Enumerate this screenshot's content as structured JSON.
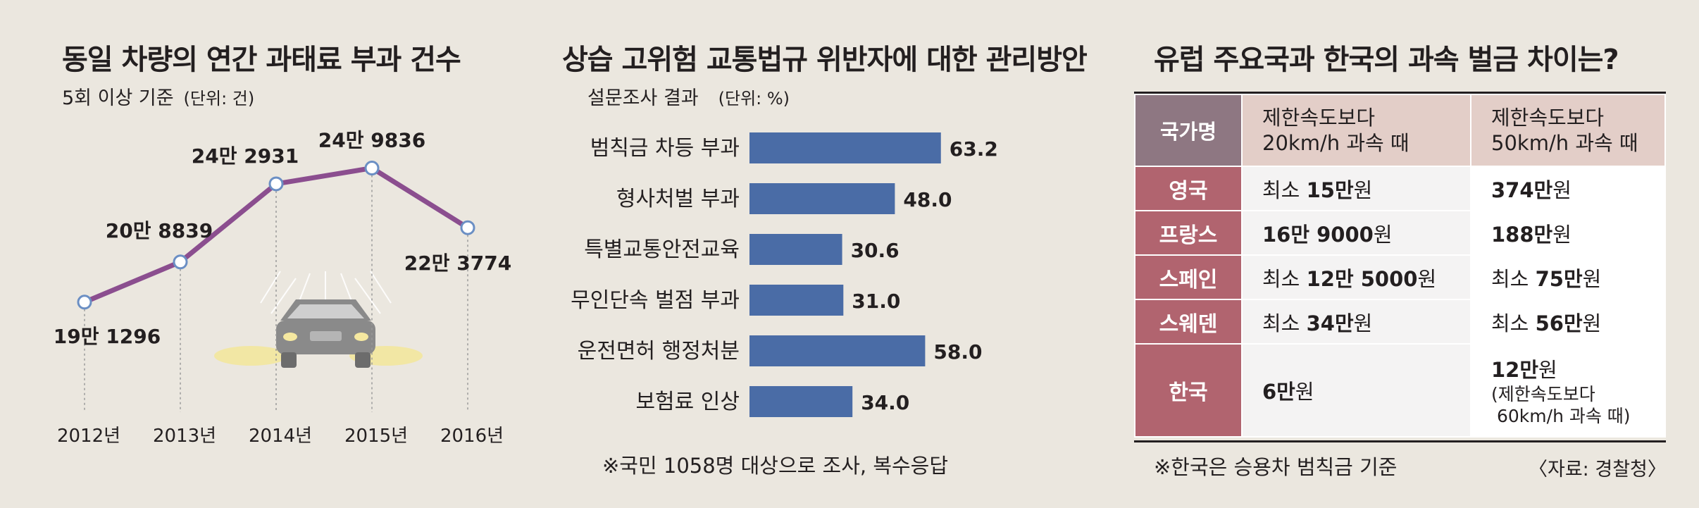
{
  "left": {
    "title": "동일 차량의 연간 과태료 부과 건수",
    "subtitle": "5회 이상 기준",
    "unit": "(단위: 건)"
  },
  "middle": {
    "title": "상습 고위험 교통법규 위반자에 대한 관리방안",
    "subtitle": "설문조사 결과",
    "unit": "(단위: %)",
    "note": "※국민 1058명 대상으로 조사, 복수응답"
  },
  "right": {
    "title": "유럽 주요국과 한국의 과속 벌금 차이는?",
    "headers": [
      "국가명",
      "제한속도보다\n20km/h 과속 때",
      "제한속도보다\n50km/h 과속 때"
    ],
    "rows": [
      {
        "country": "영국",
        "c1_pre": "최소 ",
        "c1_bold": "15만",
        "c1_post": "원",
        "c2_pre": "",
        "c2_bold": "374만",
        "c2_post": "원"
      },
      {
        "country": "프랑스",
        "c1_pre": "",
        "c1_bold": "16만 9000",
        "c1_post": "원",
        "c2_pre": "",
        "c2_bold": "188만",
        "c2_post": "원"
      },
      {
        "country": "스페인",
        "c1_pre": "최소 ",
        "c1_bold": "12만 5000",
        "c1_post": "원",
        "c2_pre": "최소 ",
        "c2_bold": "75만",
        "c2_post": "원"
      },
      {
        "country": "스웨덴",
        "c1_pre": "최소 ",
        "c1_bold": "34만",
        "c1_post": "원",
        "c2_pre": "최소 ",
        "c2_bold": "56만",
        "c2_post": "원"
      },
      {
        "country": "한국",
        "c1_pre": "",
        "c1_bold": "6만",
        "c1_post": "원",
        "c2_pre": "",
        "c2_bold": "12만",
        "c2_post": "원",
        "c2_note1": "(제한속도보다",
        "c2_note2": "60km/h 과속 때)"
      }
    ],
    "note": "※한국은 승용차 범칙금 기준",
    "source": "〈자료: 경찰청〉"
  },
  "chart_data": [
    {
      "type": "line",
      "x": [
        "2012년",
        "2013년",
        "2014년",
        "2015년",
        "2016년"
      ],
      "values": [
        191296,
        208839,
        242931,
        249836,
        223774
      ],
      "data_labels": [
        "19만 1296",
        "20만 8839",
        "24만 2931",
        "24만 9836",
        "22만 3774"
      ],
      "line_color": "#8b4e8f",
      "marker_color": "#6b8fc4"
    },
    {
      "type": "bar",
      "categories": [
        "범칙금 차등 부과",
        "형사처벌 부과",
        "특별교통안전교육",
        "무인단속 벌점 부과",
        "운전면허 행정처분",
        "보험료 인상"
      ],
      "values": [
        63.2,
        48.0,
        30.6,
        31.0,
        58.0,
        34.0
      ],
      "data_labels": [
        "63.2",
        "48.0",
        "30.6",
        "31.0",
        "58.0",
        "34.0"
      ],
      "bar_color": "#4a6ca6"
    }
  ]
}
